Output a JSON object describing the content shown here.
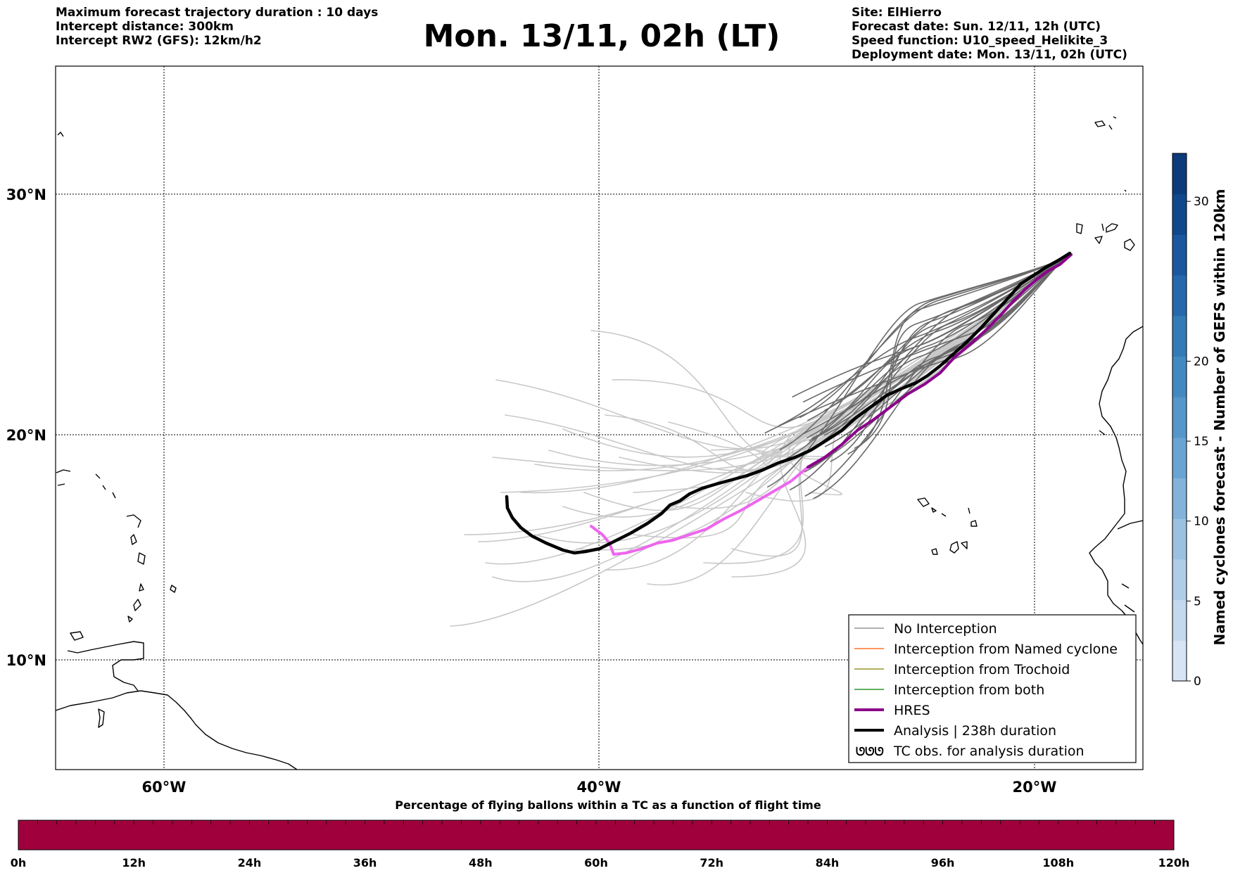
{
  "header": {
    "left_lines": [
      "Maximum forecast trajectory duration : 10 days",
      "Intercept distance: 300km",
      "Intercept RW2 (GFS):  12km/h2"
    ],
    "title": "Mon. 13/11, 02h (LT)",
    "right_lines": [
      "Site: ElHierro",
      "Forecast date: Sun. 12/11, 12h (UTC)",
      "Speed function: U10_speed_Helikite_3",
      "Deployment date: Mon. 13/11, 02h (UTC)"
    ]
  },
  "map": {
    "lon_labels": [
      "60°W",
      "40°W",
      "20°W"
    ],
    "lat_labels": [
      "30°N",
      "20°N",
      "10°N"
    ],
    "colors": {
      "ensemble_light": "#c8c8c8",
      "ensemble_dark": "#6a6a6a",
      "hres": "#8b008b",
      "hres_pink": "#ee66ee",
      "analysis": "#000000"
    }
  },
  "legend": {
    "items": [
      {
        "label": "No Interception",
        "color": "#808080",
        "style": "thin"
      },
      {
        "label": "Interception from Named cyclone",
        "color": "#ff5500",
        "style": "thin"
      },
      {
        "label": "Interception from Trochoid",
        "color": "#808000",
        "style": "thin"
      },
      {
        "label": "Interception from both",
        "color": "#008000",
        "style": "thin"
      },
      {
        "label": "HRES",
        "color": "#8b008b",
        "style": "thick"
      },
      {
        "label": "Analysis | 238h duration",
        "color": "#000000",
        "style": "thick"
      },
      {
        "label": "TC obs. for analysis duration",
        "color": "#000000",
        "style": "symbol"
      }
    ],
    "symbol": "ᘎᘎᘎ"
  },
  "colorbar_right": {
    "label": "Named cyclones forecast - Number of GEFS within 120km",
    "ticks": [
      "0",
      "5",
      "10",
      "15",
      "20",
      "30"
    ],
    "tick_values": [
      0,
      5,
      10,
      15,
      20,
      30
    ],
    "max": 33,
    "colors": [
      "#d6e4f4",
      "#c4d9ee",
      "#b0cde8",
      "#9bc1e2",
      "#83b3da",
      "#6aa4d2",
      "#5597ca",
      "#4289c2",
      "#327bb8",
      "#2568ad",
      "#1a579f",
      "#11488d",
      "#0b3b7a"
    ]
  },
  "colorbar_bottom": {
    "title": "Percentage of flying ballons within a TC as a function of flight time",
    "ticks": [
      "0h",
      "12h",
      "24h",
      "36h",
      "48h",
      "60h",
      "72h",
      "84h",
      "96h",
      "108h",
      "120h"
    ],
    "tick_hours": [
      0,
      12,
      24,
      36,
      48,
      60,
      72,
      84,
      96,
      108,
      120
    ],
    "color": "#a0003c"
  }
}
